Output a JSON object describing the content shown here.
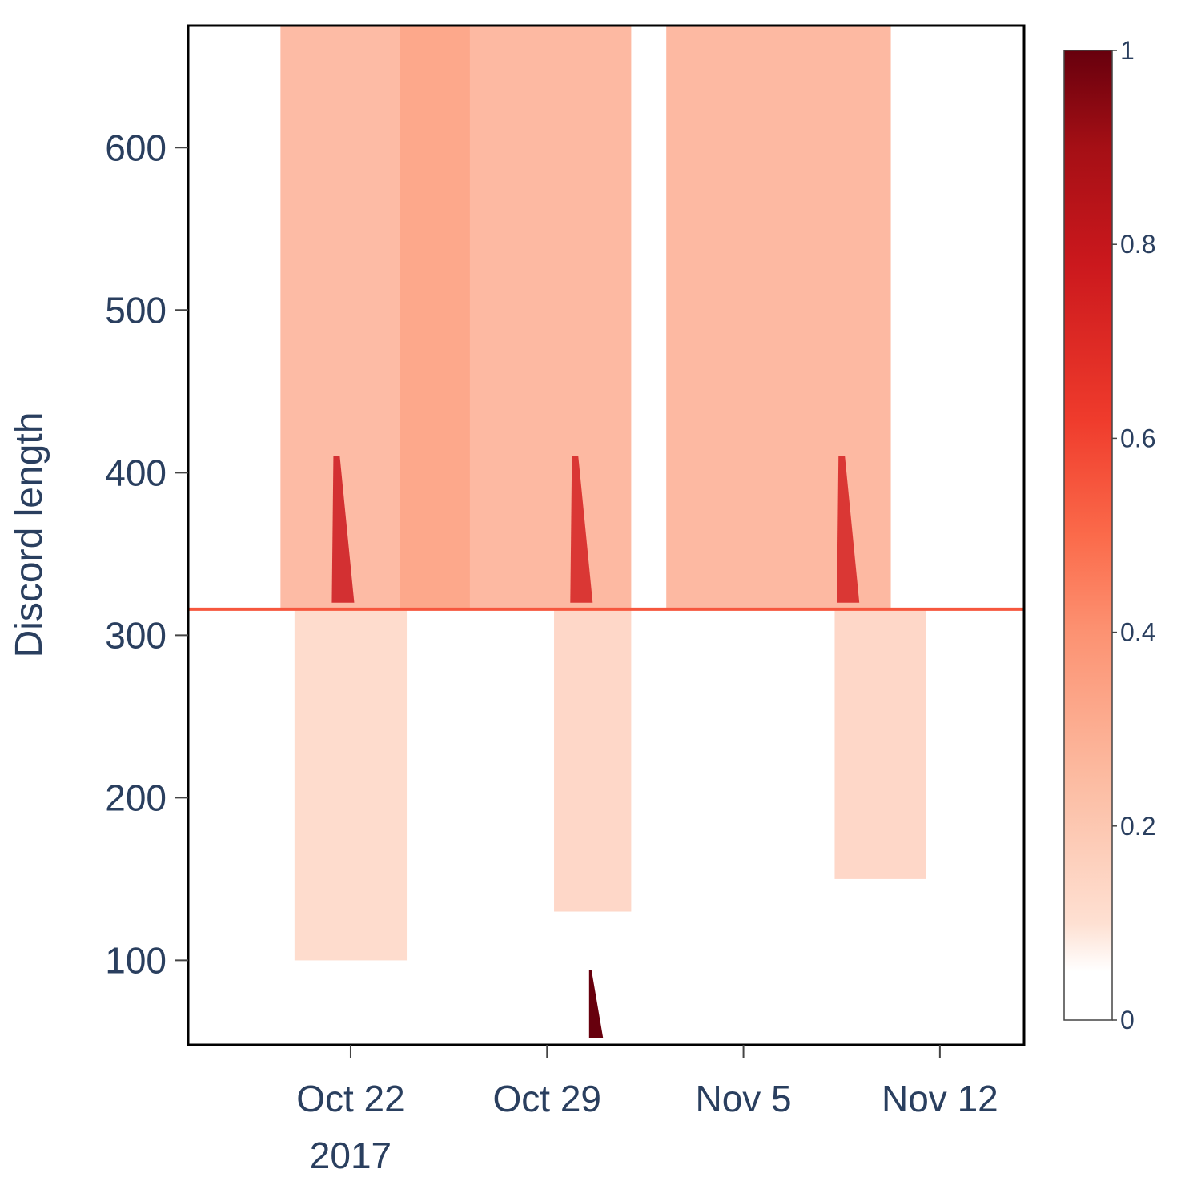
{
  "chart_data": {
    "type": "heatmap",
    "title": "",
    "xlabel": "",
    "ylabel": "Discord length",
    "x_axis": {
      "type": "date",
      "range": [
        "2017-10-16T05:00",
        "2017-11-15T00:00"
      ],
      "ticks": [
        {
          "date": "2017-10-22",
          "label": "Oct 22",
          "sublabel": "2017"
        },
        {
          "date": "2017-10-29",
          "label": "Oct 29",
          "sublabel": ""
        },
        {
          "date": "2017-11-05",
          "label": "Nov 5",
          "sublabel": ""
        },
        {
          "date": "2017-11-12",
          "label": "Nov 12",
          "sublabel": ""
        }
      ]
    },
    "y_axis": {
      "range": [
        48,
        675
      ],
      "ticks": [
        100,
        200,
        300,
        400,
        500,
        600
      ]
    },
    "colorbar": {
      "range": [
        0,
        1
      ],
      "ticks": [
        {
          "value": 0,
          "label": "0"
        },
        {
          "value": 0.2,
          "label": "0.2"
        },
        {
          "value": 0.4,
          "label": "0.4"
        },
        {
          "value": 0.6,
          "label": "0.6"
        },
        {
          "value": 0.8,
          "label": "0.8"
        },
        {
          "value": 1,
          "label": "1"
        }
      ],
      "colorscale": "Reds",
      "colors": [
        "#ffffff",
        "#fee0d2",
        "#fcbba1",
        "#fc9272",
        "#fb6a4a",
        "#ef3b2c",
        "#cb181d",
        "#a50f15",
        "#67000d"
      ]
    },
    "regions": [
      {
        "x_start": "2017-10-19T12:00",
        "x_end": "2017-10-26T06:00",
        "y_start": 316,
        "y_end": 675,
        "value": 0.32,
        "note": "band"
      },
      {
        "x_start": "2017-10-23T18:00",
        "x_end": "2017-11-01T00:00",
        "y_start": 316,
        "y_end": 675,
        "value": 0.33,
        "note": "band"
      },
      {
        "x_start": "2017-11-02T06:00",
        "x_end": "2017-11-10T06:00",
        "y_start": 316,
        "y_end": 675,
        "value": 0.33,
        "note": "band"
      },
      {
        "x_start": "2017-10-20T00:00",
        "x_end": "2017-10-24T00:00",
        "y_start": 100,
        "y_end": 316,
        "value": 0.18,
        "note": "lower band"
      },
      {
        "x_start": "2017-10-29T06:00",
        "x_end": "2017-11-01T00:00",
        "y_start": 130,
        "y_end": 316,
        "value": 0.2,
        "note": "lower band"
      },
      {
        "x_start": "2017-11-08T06:00",
        "x_end": "2017-11-11T12:00",
        "y_start": 150,
        "y_end": 316,
        "value": 0.2,
        "note": "lower band"
      }
    ],
    "peaks": [
      {
        "date": "2017-10-21T12:00",
        "y": 320,
        "value": 0.75
      },
      {
        "date": "2017-10-30T00:00",
        "y": 320,
        "value": 0.72
      },
      {
        "date": "2017-11-08T12:00",
        "y": 320,
        "value": 0.72
      }
    ],
    "horizontal_line": {
      "y": 316,
      "x_start": "2017-10-16T05:00",
      "x_end": "2017-11-15T00:00",
      "value": 0.55
    },
    "max_region": {
      "x_start": "2017-10-30T12:00",
      "x_end": "2017-10-31T00:00",
      "y_start": 52,
      "y_end": 94,
      "value": 1.0
    }
  }
}
